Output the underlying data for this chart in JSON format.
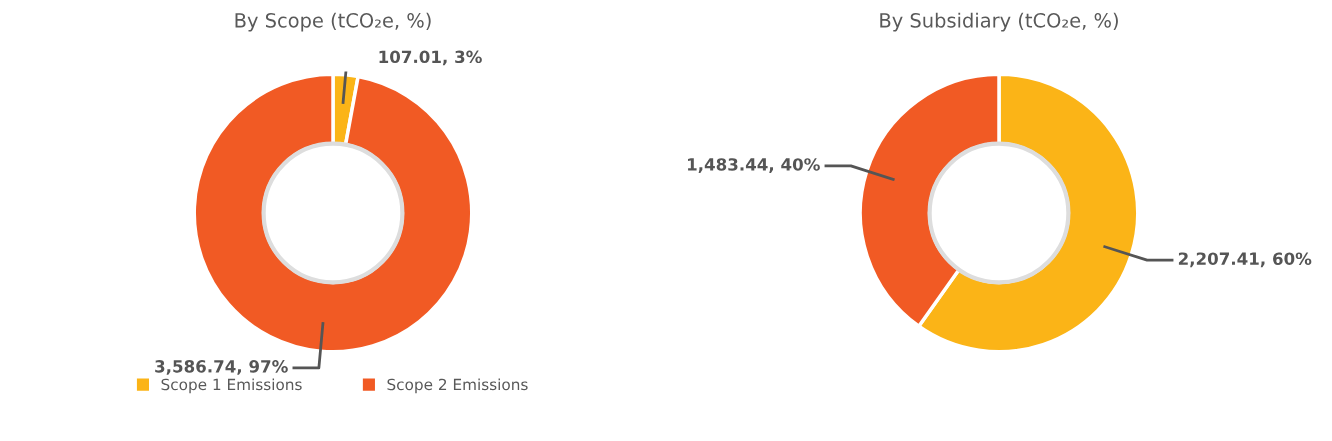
{
  "chart_data": [
    {
      "type": "donut",
      "title": "By Scope (tCO₂e, %)",
      "categories": [
        "Scope 1 Emissions",
        "Scope 2 Emissions"
      ],
      "values": [
        107.01,
        3586.74
      ],
      "colors": [
        "#fbb417",
        "#f15a24"
      ],
      "value_labels": [
        "107.01, 3%",
        "3,586.74, 97%"
      ],
      "legend": "bottom"
    },
    {
      "type": "donut",
      "title": "By Subsidiary (tCO₂e, %)",
      "categories": [
        null,
        null
      ],
      "values": [
        2207.41,
        1483.44
      ],
      "colors": [
        "#fbb417",
        "#f15a24"
      ],
      "value_labels": [
        "2,207.41, 60%",
        "1,483.44, 40%"
      ]
    }
  ]
}
